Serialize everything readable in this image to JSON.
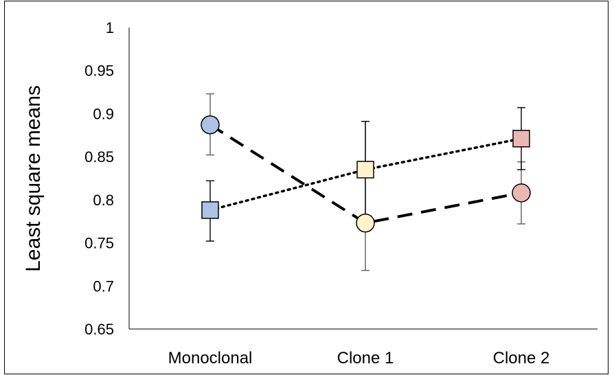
{
  "chart_data": {
    "type": "line",
    "ylabel": "Least square means",
    "xlabel": "",
    "ylim": [
      0.65,
      1
    ],
    "yticks": [
      "0.65",
      "0.7",
      "0.75",
      "0.8",
      "0.85",
      "0.9",
      "0.95",
      "1"
    ],
    "categories": [
      "Monoclonal",
      "Clone 1",
      "Clone 2"
    ],
    "grid": false,
    "series": [
      {
        "line_style": "dashed",
        "marker": "circle",
        "values": [
          0.887,
          0.773,
          0.808
        ],
        "error_low": [
          0.852,
          0.718,
          0.772
        ],
        "error_high": [
          0.923,
          0.891,
          0.844
        ],
        "marker_colors": [
          "#aec2e6",
          "#fff2cc",
          "#ebb7b5"
        ]
      },
      {
        "line_style": "dotted",
        "marker": "square",
        "values": [
          0.788,
          0.835,
          0.871
        ],
        "error_low": [
          0.752,
          0.771,
          0.835
        ],
        "error_high": [
          0.822,
          0.891,
          0.907
        ],
        "marker_colors": [
          "#aec2e6",
          "#fff2cc",
          "#ebb7b5"
        ]
      }
    ]
  }
}
